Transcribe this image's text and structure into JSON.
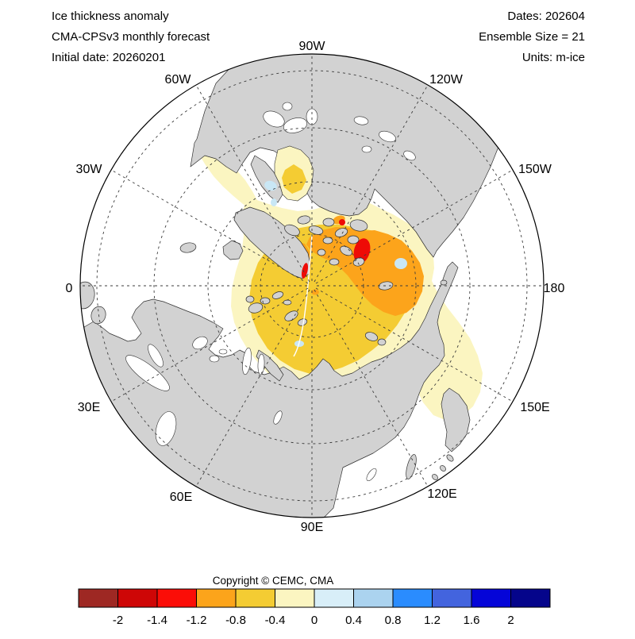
{
  "header": {
    "line1": "Ice thickness anomaly",
    "line2": "CMA-CPSv3 monthly forecast",
    "line3": "Initial date: 20260201"
  },
  "info": {
    "dates": "Dates: 202604",
    "ensemble": "Ensemble Size = 21",
    "units": "Units: m-ice"
  },
  "footer": {
    "copyright": "Copyright © CEMC, CMA"
  },
  "map": {
    "projection": "north-polar-stereographic",
    "lon_labels": [
      {
        "text": "90W"
      },
      {
        "text": "60W"
      },
      {
        "text": "120W"
      },
      {
        "text": "30W"
      },
      {
        "text": "150W"
      },
      {
        "text": "0"
      },
      {
        "text": "180"
      },
      {
        "text": "30E"
      },
      {
        "text": "150E"
      },
      {
        "text": "60E"
      },
      {
        "text": "120E"
      },
      {
        "text": "90E"
      }
    ],
    "fill_meaning": {
      "land": "#D2D2D2",
      "ocean": "#FFFFFF",
      "anomaly_-0.4_0": "#FBF5C1",
      "anomaly_-0.8_-0.4": "#F4CC33",
      "anomaly_-1.2_-0.8": "#FCA41B",
      "anomaly_-1.4_-1.2": "#EE0B06",
      "anomaly_0_0.4": "#C9E7F5"
    }
  },
  "colorbar": {
    "ticks": [
      "-2",
      "-1.4",
      "-1.2",
      "-0.8",
      "-0.4",
      "0",
      "0.4",
      "0.8",
      "1.2",
      "1.6",
      "2"
    ],
    "colors": [
      "#9E2823",
      "#CE0606",
      "#FB0D07",
      "#FCA41B",
      "#F4CC33",
      "#FBF5C1",
      "#D8EEF8",
      "#ABD3EF",
      "#2A8CFE",
      "#4364DE",
      "#0505D8",
      "#05058B"
    ]
  }
}
